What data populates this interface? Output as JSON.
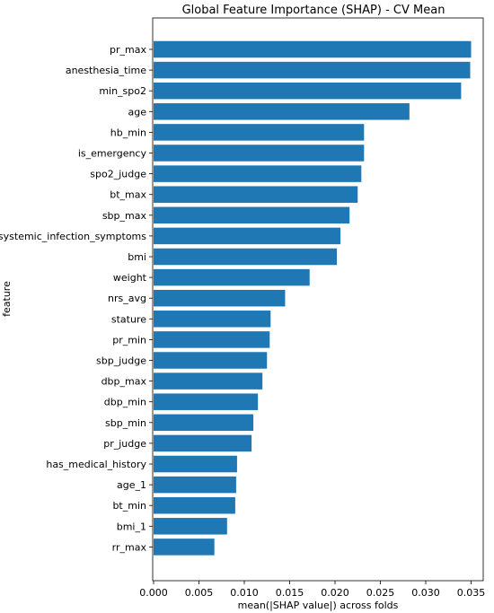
{
  "chart_data": {
    "type": "bar",
    "orientation": "horizontal",
    "title": "Global Feature Importance (SHAP) - CV Mean",
    "xlabel": "mean(|SHAP value|) across folds",
    "ylabel": "feature",
    "xlim": [
      0,
      0.0365
    ],
    "xticks": [
      "0.000",
      "0.005",
      "0.010",
      "0.015",
      "0.020",
      "0.025",
      "0.030",
      "0.035"
    ],
    "xtick_values": [
      0,
      0.005,
      0.01,
      0.015,
      0.02,
      0.025,
      0.03,
      0.035
    ],
    "grid": false,
    "bar_color": "#1f77b4",
    "categories": [
      "pr_max",
      "anesthesia_time",
      "min_spo2",
      "age",
      "hb_min",
      "is_emergency",
      "spo2_judge",
      "bt_max",
      "sbp_max",
      "systemic_infection_symptoms",
      "bmi",
      "weight",
      "nrs_avg",
      "stature",
      "pr_min",
      "sbp_judge",
      "dbp_max",
      "dbp_min",
      "sbp_min",
      "pr_judge",
      "has_medical_history",
      "age_1",
      "bt_min",
      "bmi_1",
      "rr_max"
    ],
    "values": [
      0.035,
      0.0349,
      0.0339,
      0.0282,
      0.0232,
      0.0232,
      0.0229,
      0.0225,
      0.0216,
      0.0206,
      0.0202,
      0.0172,
      0.0145,
      0.0129,
      0.0128,
      0.0125,
      0.012,
      0.0115,
      0.011,
      0.0108,
      0.0092,
      0.0091,
      0.009,
      0.0081,
      0.0067
    ]
  }
}
